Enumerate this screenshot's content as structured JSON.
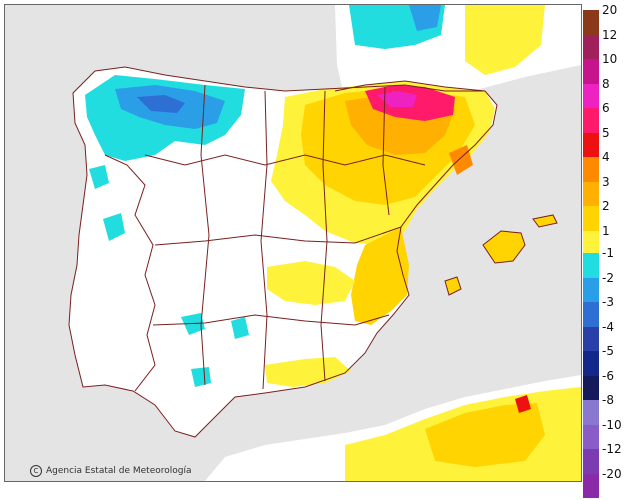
{
  "credit": {
    "logo_glyph": "C",
    "text": "Agencia Estatal de Meteorología"
  },
  "colors": {
    "sea": "#e4e4e4",
    "land": "#ffffff",
    "borders": "#7a1f1f"
  },
  "legend": {
    "positive": [
      {
        "label": "20",
        "color": "#8a3a1a"
      },
      {
        "label": "12",
        "color": "#a0205a"
      },
      {
        "label": "10",
        "color": "#c8148c"
      },
      {
        "label": "8",
        "color": "#ee22c0"
      },
      {
        "label": "6",
        "color": "#ff1a6a"
      },
      {
        "label": "5",
        "color": "#ee1111"
      },
      {
        "label": "4",
        "color": "#ff8a00"
      },
      {
        "label": "3",
        "color": "#ffb000"
      },
      {
        "label": "2",
        "color": "#ffd400"
      },
      {
        "label": "1",
        "color": "#fff23a"
      }
    ],
    "negative": [
      {
        "label": "-1",
        "color": "#22dde0"
      },
      {
        "label": "-2",
        "color": "#2a9fe8"
      },
      {
        "label": "-3",
        "color": "#2e6fd4"
      },
      {
        "label": "-4",
        "color": "#2840a8"
      },
      {
        "label": "-5",
        "color": "#12288a"
      },
      {
        "label": "-6",
        "color": "#141a5a"
      },
      {
        "label": "-8",
        "color": "#8a78d0"
      },
      {
        "label": "-10",
        "color": "#8a5cc8"
      },
      {
        "label": "-12",
        "color": "#7a3cb0"
      },
      {
        "label": "-20",
        "color": "#8a2aa8"
      }
    ]
  }
}
